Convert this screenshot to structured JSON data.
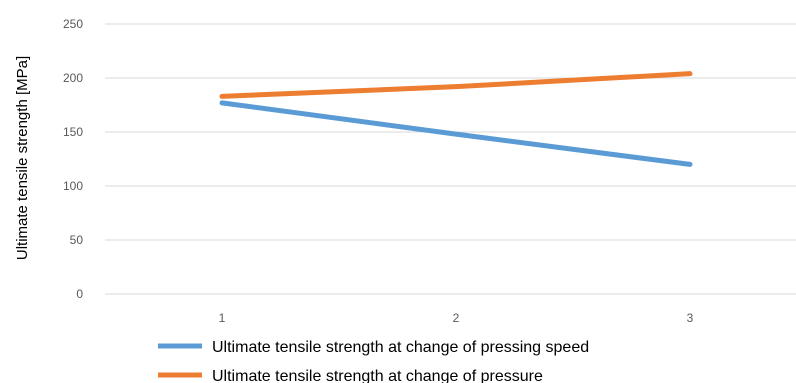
{
  "chart_data": {
    "type": "line",
    "x": [
      1,
      2,
      3
    ],
    "categories": [
      "1",
      "2",
      "3"
    ],
    "ylabel": "Ultimate tensile strength     [MPa]",
    "ylim": [
      0,
      250
    ],
    "yticks": [
      0,
      50,
      100,
      150,
      200,
      250
    ],
    "ytick_labels": [
      "0",
      "50",
      "100",
      "150",
      "200",
      "250"
    ],
    "grid": true,
    "legend_position": "bottom",
    "series": [
      {
        "name": "Ultimate tensile strength at change of pressing speed",
        "values": [
          177,
          148,
          120
        ],
        "color": "#5B9BD5"
      },
      {
        "name": "Ultimate tensile strength at change of pressure",
        "values": [
          183,
          192,
          204
        ],
        "color": "#ED7D31"
      }
    ]
  }
}
